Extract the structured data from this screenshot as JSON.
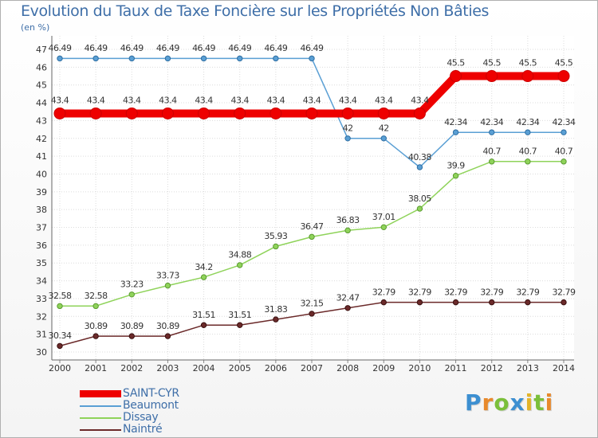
{
  "page": {
    "title": "Evolution du Taux de Taxe Foncière sur les Propriétés Non Bâties",
    "unit": "(en %)"
  },
  "logo": {
    "text": "Proxiti",
    "letters": [
      {
        "ch": "P",
        "color": "#3c8fd1"
      },
      {
        "ch": "r",
        "color": "#e8892b"
      },
      {
        "ch": "o",
        "color": "#7bbf3a"
      },
      {
        "ch": "x",
        "color": "#3c8fd1"
      },
      {
        "ch": "i",
        "color": "#e3b42a"
      },
      {
        "ch": "t",
        "color": "#7bbf3a"
      },
      {
        "ch": "i",
        "color": "#e8892b"
      }
    ]
  },
  "chart_data": {
    "type": "line",
    "title": "Evolution du Taux de Taxe Foncière sur les Propriétés Non Bâties",
    "ylabel": "(en %)",
    "xlabel": "",
    "ylim": [
      30,
      47
    ],
    "yticks": [
      30,
      31,
      32,
      33,
      34,
      35,
      36,
      37,
      38,
      39,
      40,
      41,
      42,
      43,
      44,
      45,
      46,
      47
    ],
    "grid": true,
    "legend_position": "bottom-left",
    "x": [
      "2000",
      "2001",
      "2002",
      "2003",
      "2004",
      "2005",
      "2006",
      "2007",
      "2008",
      "2009",
      "2010",
      "2011",
      "2012",
      "2013",
      "2014"
    ],
    "series": [
      {
        "name": "SAINT-CYR",
        "color": "#ee0000",
        "values": [
          43.4,
          43.4,
          43.4,
          43.4,
          43.4,
          43.4,
          43.4,
          43.4,
          43.4,
          43.4,
          43.4,
          45.5,
          45.5,
          45.5,
          45.5
        ],
        "labels": [
          "43.4",
          "43.4",
          "43.4",
          "43.4",
          "43.4",
          "43.4",
          "43.4",
          "43.4",
          "43.4",
          "43.4",
          "43.4",
          "45.5",
          "45.5",
          "45.5",
          "45.5"
        ]
      },
      {
        "name": "Beaumont",
        "color": "#5a9fd4",
        "values": [
          46.49,
          46.49,
          46.49,
          46.49,
          46.49,
          46.49,
          46.49,
          46.49,
          42,
          42,
          40.38,
          42.34,
          42.34,
          42.34,
          42.34
        ],
        "labels": [
          "46.49",
          "46.49",
          "46.49",
          "46.49",
          "46.49",
          "46.49",
          "46.49",
          "46.49",
          "42",
          "42",
          "40.38",
          "42.34",
          "42.34",
          "42.34",
          "42.34"
        ]
      },
      {
        "name": "Dissay",
        "color": "#8fd35a",
        "values": [
          32.58,
          32.58,
          33.23,
          33.73,
          34.2,
          34.88,
          35.93,
          36.47,
          36.83,
          37.01,
          38.05,
          39.9,
          40.7,
          40.7,
          40.7
        ],
        "labels": [
          "32.58",
          "32.58",
          "33.23",
          "33.73",
          "34.2",
          "34.88",
          "35.93",
          "36.47",
          "36.83",
          "37.01",
          "38.05",
          "39.9",
          "40.7",
          "40.7",
          "40.7"
        ]
      },
      {
        "name": "Naintré",
        "color": "#6b2a2a",
        "values": [
          30.34,
          30.89,
          30.89,
          30.89,
          31.51,
          31.51,
          31.83,
          32.15,
          32.47,
          32.79,
          32.79,
          32.79,
          32.79,
          32.79,
          32.79
        ],
        "labels": [
          "30.34",
          "30.89",
          "30.89",
          "30.89",
          "31.51",
          "31.51",
          "31.83",
          "32.15",
          "32.47",
          "32.79",
          "32.79",
          "32.79",
          "32.79",
          "32.79",
          "32.79"
        ]
      }
    ]
  }
}
